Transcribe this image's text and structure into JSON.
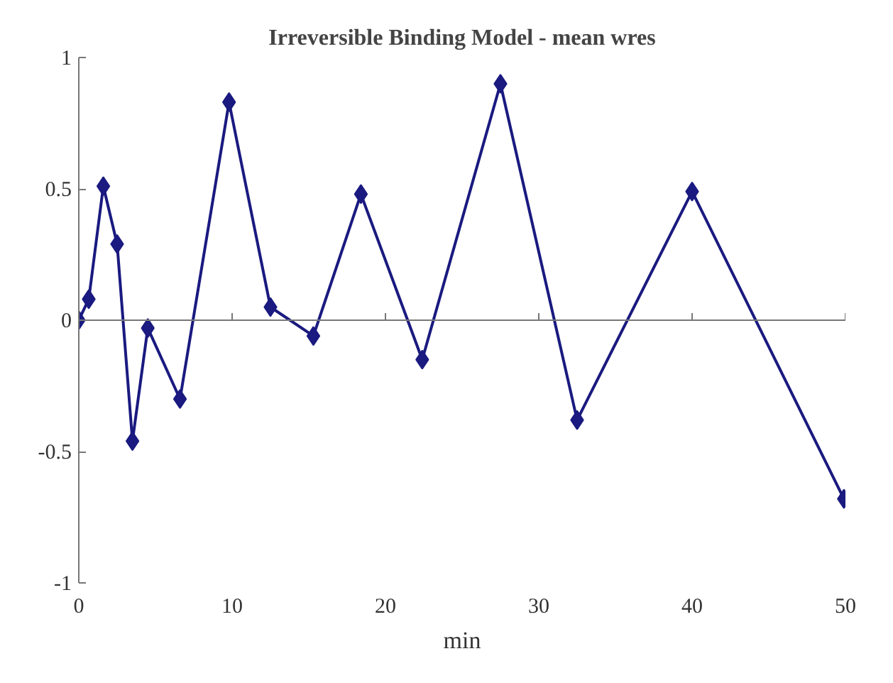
{
  "chart_data": {
    "type": "line",
    "title": "Irreversible Binding Model - mean wres",
    "xlabel": "min",
    "x": [
      0,
      0.65,
      1.6,
      2.5,
      3.5,
      4.5,
      6.6,
      9.8,
      12.5,
      15.3,
      18.4,
      22.4,
      27.5,
      32.5,
      40,
      49.9
    ],
    "series": [
      {
        "color": "#1a1a80",
        "values": [
          0,
          0.08,
          0.51,
          0.29,
          -0.46,
          -0.03,
          -0.3,
          0.83,
          0.05,
          -0.06,
          0.48,
          -0.15,
          0.9,
          -0.38,
          0.49,
          -0.68
        ]
      }
    ],
    "xlim": [
      0,
      50
    ],
    "ylim": [
      -1,
      1
    ],
    "xticks": [
      0,
      10,
      20,
      30,
      40,
      50
    ],
    "yticks": [
      -1,
      -0.5,
      0,
      0.5,
      1
    ],
    "marker": "diamond",
    "line_style": "solid"
  }
}
